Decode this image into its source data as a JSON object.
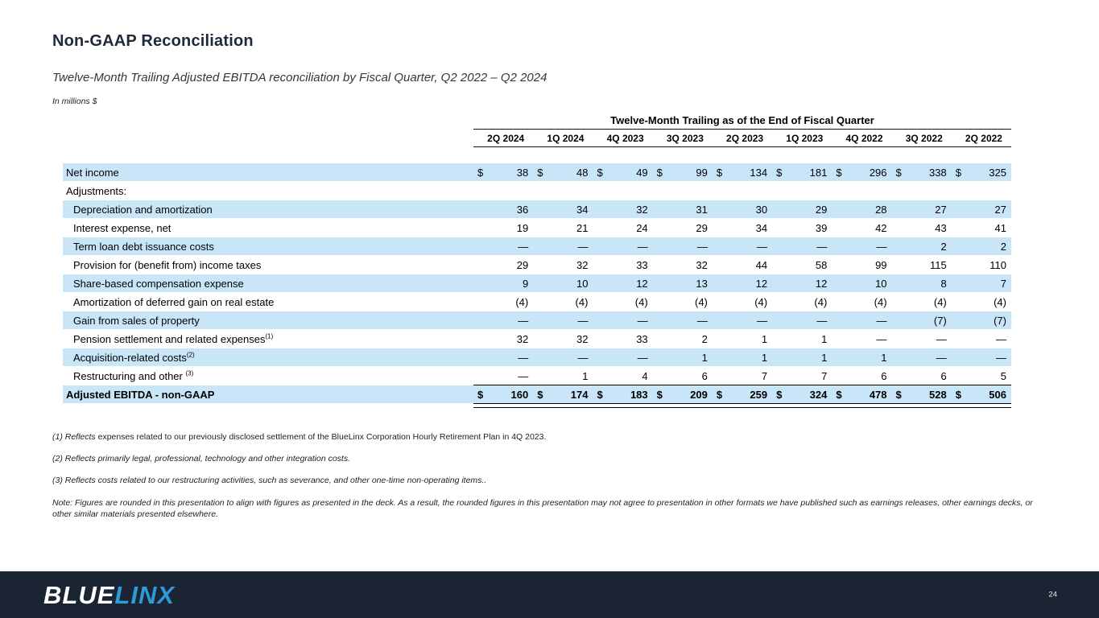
{
  "slide": {
    "title": "Non-GAAP Reconciliation",
    "subtitle": "Twelve-Month Trailing Adjusted EBITDA reconciliation by Fiscal Quarter, Q2 2022 – Q2 2024",
    "units_label": "In millions $",
    "page_number": "24"
  },
  "colors": {
    "band_blue": "#c9e6f8",
    "footer_navy": "#1a2433",
    "logo_blue": "#2f9ad8",
    "title_navy": "#1e2a38"
  },
  "table": {
    "header": "Twelve-Month Trailing as of the End of Fiscal Quarter",
    "columns": [
      "2Q 2024",
      "1Q 2024",
      "4Q 2023",
      "3Q 2023",
      "2Q 2023",
      "1Q 2023",
      "4Q 2022",
      "3Q 2022",
      "2Q 2022"
    ],
    "rows": [
      {
        "label": "Net income",
        "indent": false,
        "band": "blue",
        "dollar": true,
        "bold": false,
        "total": false,
        "values": [
          "38",
          "48",
          "49",
          "99",
          "134",
          "181",
          "296",
          "338",
          "325"
        ]
      },
      {
        "label": "Adjustments:",
        "indent": false,
        "band": "white",
        "dollar": false,
        "bold": false,
        "total": false,
        "values": null
      },
      {
        "label": "Depreciation and amortization",
        "indent": true,
        "band": "blue",
        "dollar": false,
        "bold": false,
        "total": false,
        "values": [
          "36",
          "34",
          "32",
          "31",
          "30",
          "29",
          "28",
          "27",
          "27"
        ]
      },
      {
        "label": "Interest expense, net",
        "indent": true,
        "band": "white",
        "dollar": false,
        "bold": false,
        "total": false,
        "values": [
          "19",
          "21",
          "24",
          "29",
          "34",
          "39",
          "42",
          "43",
          "41"
        ]
      },
      {
        "label": "Term loan debt issuance costs",
        "indent": true,
        "band": "blue",
        "dollar": false,
        "bold": false,
        "total": false,
        "values": [
          "—",
          "—",
          "—",
          "—",
          "—",
          "—",
          "—",
          "2",
          "2"
        ]
      },
      {
        "label": "Provision for (benefit from) income taxes",
        "indent": true,
        "band": "white",
        "dollar": false,
        "bold": false,
        "total": false,
        "values": [
          "29",
          "32",
          "33",
          "32",
          "44",
          "58",
          "99",
          "115",
          "110"
        ]
      },
      {
        "label": "Share-based compensation expense",
        "indent": true,
        "band": "blue",
        "dollar": false,
        "bold": false,
        "total": false,
        "values": [
          "9",
          "10",
          "12",
          "13",
          "12",
          "12",
          "10",
          "8",
          "7"
        ]
      },
      {
        "label": "Amortization of deferred gain on real estate",
        "indent": true,
        "band": "white",
        "dollar": false,
        "bold": false,
        "total": false,
        "values": [
          "(4)",
          "(4)",
          "(4)",
          "(4)",
          "(4)",
          "(4)",
          "(4)",
          "(4)",
          "(4)"
        ]
      },
      {
        "label": "Gain from sales of property",
        "indent": true,
        "band": "blue",
        "dollar": false,
        "bold": false,
        "total": false,
        "values": [
          "—",
          "—",
          "—",
          "—",
          "—",
          "—",
          "—",
          "(7)",
          "(7)"
        ]
      },
      {
        "label": "Pension settlement and related expenses",
        "sup": "(1)",
        "indent": true,
        "band": "white",
        "dollar": false,
        "bold": false,
        "total": false,
        "values": [
          "32",
          "32",
          "33",
          "2",
          "1",
          "1",
          "—",
          "—",
          "—"
        ]
      },
      {
        "label": "Acquisition-related costs",
        "sup": "(2)",
        "indent": true,
        "band": "blue",
        "dollar": false,
        "bold": false,
        "total": false,
        "values": [
          "—",
          "—",
          "—",
          "1",
          "1",
          "1",
          "1",
          "—",
          "—"
        ]
      },
      {
        "label": "Restructuring and other ",
        "sup": "(3)",
        "indent": true,
        "band": "white",
        "dollar": false,
        "bold": false,
        "total": false,
        "values": [
          "—",
          "1",
          "4",
          "6",
          "7",
          "7",
          "6",
          "6",
          "5"
        ]
      },
      {
        "label": "Adjusted EBITDA - non-GAAP",
        "indent": false,
        "band": "blue",
        "dollar": true,
        "bold": true,
        "total": true,
        "values": [
          "160",
          "174",
          "183",
          "209",
          "259",
          "324",
          "478",
          "528",
          "506"
        ]
      }
    ]
  },
  "footnotes": [
    {
      "prefix": "(1) Reflects",
      "rest": " expenses related to our previously disclosed settlement of the BlueLinx Corporation Hourly Retirement Plan in 4Q 2023."
    },
    {
      "text": "(2) Reflects primarily legal, professional, technology and other integration costs."
    },
    {
      "text": "(3) Reflects costs related to our restructuring activities, such as severance, and other one-time non-operating items.."
    }
  ],
  "note": "Note: Figures are rounded in this presentation to align with figures as presented in the deck.  As a result, the rounded figures in this presentation may not agree to presentation in other formats we have published such as earnings releases, other earnings decks, or other similar materials presented elsewhere.",
  "logo": {
    "blue": "BLUE",
    "linx": "LINX"
  }
}
